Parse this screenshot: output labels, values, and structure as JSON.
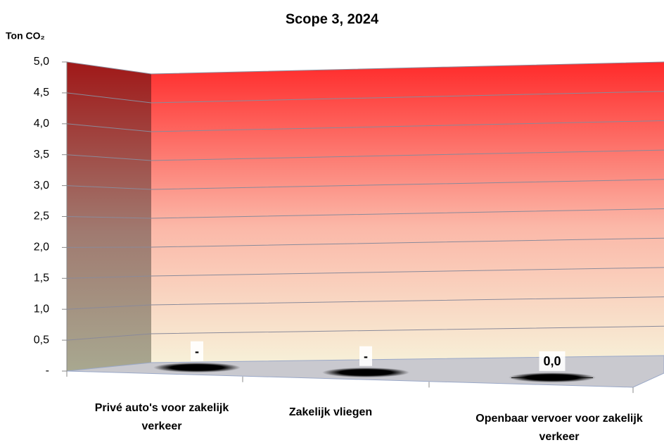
{
  "chart_data": {
    "type": "bar3d",
    "title": "Scope 3, 2024",
    "y_axis_label": "Ton CO₂",
    "categories": [
      "Privé auto's voor zakelijk verkeer",
      "Zakelijk vliegen",
      "Openbaar vervoer voor zakelijk verkeer"
    ],
    "values": [
      0,
      0,
      0.01
    ],
    "value_labels": [
      "-",
      "-",
      "0,0"
    ],
    "color": "#000000",
    "ylim": [
      0,
      5
    ],
    "yticks": [
      {
        "value": 0,
        "label": "-"
      },
      {
        "value": 0.5,
        "label": "0,5"
      },
      {
        "value": 1,
        "label": "1,0"
      },
      {
        "value": 1.5,
        "label": "1,5"
      },
      {
        "value": 2,
        "label": "2,0"
      },
      {
        "value": 2.5,
        "label": "2,5"
      },
      {
        "value": 3,
        "label": "3,0"
      },
      {
        "value": 3.5,
        "label": "3,5"
      },
      {
        "value": 4,
        "label": "4,0"
      },
      {
        "value": 4.5,
        "label": "4,5"
      },
      {
        "value": 5,
        "label": "5,0"
      }
    ],
    "grid": true
  }
}
